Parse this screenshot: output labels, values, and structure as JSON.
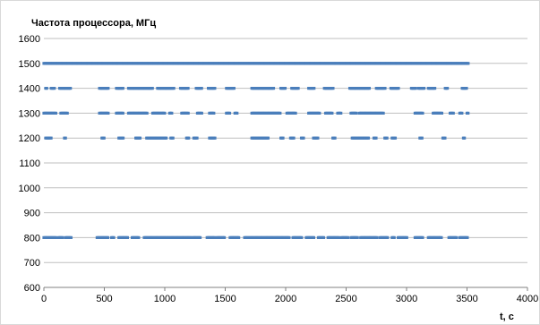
{
  "chart_data": {
    "type": "scatter",
    "ylabel": "Частота процессора, МГц",
    "xlabel": "t, c",
    "xlim": [
      0,
      4000
    ],
    "ylim": [
      600,
      1600
    ],
    "xticks": [
      0,
      500,
      1000,
      1500,
      2000,
      2500,
      3000,
      3500,
      4000
    ],
    "yticks": [
      600,
      700,
      800,
      900,
      1000,
      1100,
      1200,
      1300,
      1400,
      1500,
      1600
    ],
    "grid": "horizontal",
    "legend": "none",
    "marker_color": "#4a7ebb",
    "series": [
      {
        "y": 1500,
        "segments": [
          [
            0,
            3510
          ]
        ]
      },
      {
        "y": 1400,
        "segments": [
          [
            15,
            25
          ],
          [
            60,
            90
          ],
          [
            130,
            220
          ],
          [
            460,
            540
          ],
          [
            600,
            660
          ],
          [
            700,
            900
          ],
          [
            940,
            1080
          ],
          [
            1130,
            1200
          ],
          [
            1260,
            1310
          ],
          [
            1360,
            1420
          ],
          [
            1510,
            1580
          ],
          [
            1720,
            1900
          ],
          [
            1960,
            2000
          ],
          [
            2050,
            2110
          ],
          [
            2190,
            2240
          ],
          [
            2320,
            2400
          ],
          [
            2530,
            2700
          ],
          [
            2750,
            2830
          ],
          [
            2870,
            2940
          ],
          [
            3040,
            3080
          ],
          [
            3100,
            3150
          ],
          [
            3180,
            3240
          ],
          [
            3320,
            3340
          ],
          [
            3460,
            3500
          ]
        ]
      },
      {
        "y": 1300,
        "segments": [
          [
            0,
            100
          ],
          [
            140,
            200
          ],
          [
            460,
            540
          ],
          [
            600,
            660
          ],
          [
            700,
            860
          ],
          [
            900,
            1000
          ],
          [
            1040,
            1060
          ],
          [
            1140,
            1200
          ],
          [
            1270,
            1310
          ],
          [
            1370,
            1410
          ],
          [
            1510,
            1540
          ],
          [
            1580,
            1600
          ],
          [
            1720,
            1960
          ],
          [
            2010,
            2090
          ],
          [
            2190,
            2280
          ],
          [
            2330,
            2390
          ],
          [
            2430,
            2460
          ],
          [
            2540,
            2590
          ],
          [
            2610,
            2810
          ],
          [
            3070,
            3140
          ],
          [
            3220,
            3300
          ],
          [
            3360,
            3390
          ],
          [
            3440,
            3460
          ],
          [
            3500,
            3510
          ]
        ]
      },
      {
        "y": 1200,
        "segments": [
          [
            15,
            60
          ],
          [
            170,
            180
          ],
          [
            480,
            500
          ],
          [
            620,
            660
          ],
          [
            760,
            800
          ],
          [
            850,
            1020
          ],
          [
            1050,
            1070
          ],
          [
            1180,
            1200
          ],
          [
            1240,
            1270
          ],
          [
            1370,
            1420
          ],
          [
            1720,
            1860
          ],
          [
            1960,
            1980
          ],
          [
            2040,
            2070
          ],
          [
            2130,
            2150
          ],
          [
            2230,
            2270
          ],
          [
            2390,
            2410
          ],
          [
            2550,
            2690
          ],
          [
            2730,
            2750
          ],
          [
            2820,
            2840
          ],
          [
            2880,
            2910
          ],
          [
            3110,
            3130
          ],
          [
            3300,
            3320
          ],
          [
            3470,
            3480
          ]
        ]
      },
      {
        "y": 800,
        "segments": [
          [
            0,
            100
          ],
          [
            120,
            160
          ],
          [
            180,
            230
          ],
          [
            440,
            530
          ],
          [
            560,
            580
          ],
          [
            620,
            700
          ],
          [
            730,
            790
          ],
          [
            830,
            1000
          ],
          [
            1000,
            1220
          ],
          [
            1230,
            1300
          ],
          [
            1350,
            1420
          ],
          [
            1430,
            1500
          ],
          [
            1540,
            1620
          ],
          [
            1660,
            2030
          ],
          [
            2060,
            2140
          ],
          [
            2170,
            2240
          ],
          [
            2270,
            2320
          ],
          [
            2350,
            2440
          ],
          [
            2460,
            2520
          ],
          [
            2540,
            2600
          ],
          [
            2620,
            2760
          ],
          [
            2780,
            2850
          ],
          [
            2880,
            2900
          ],
          [
            2930,
            3010
          ],
          [
            3070,
            3140
          ],
          [
            3180,
            3290
          ],
          [
            3350,
            3420
          ],
          [
            3440,
            3510
          ]
        ]
      }
    ]
  }
}
